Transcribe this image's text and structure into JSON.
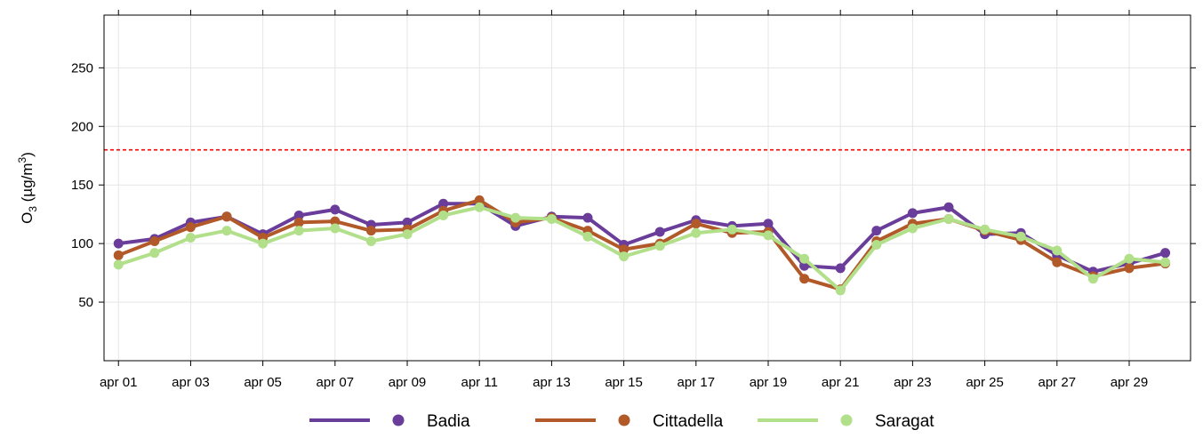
{
  "chart_data": {
    "type": "line",
    "title": "",
    "xlabel": "",
    "ylabel": {
      "base": "O",
      "sub": "3",
      "unit_prefix": " (µg/m",
      "sup": "3",
      "unit_suffix": ")"
    },
    "ylim": [
      0,
      295
    ],
    "yticks": [
      50,
      100,
      150,
      200,
      250
    ],
    "xlim": [
      0.6,
      30.7
    ],
    "xticks": [
      1,
      3,
      5,
      7,
      9,
      11,
      13,
      15,
      17,
      19,
      21,
      23,
      25,
      27,
      29
    ],
    "xtick_labels": [
      "apr 01",
      "apr 03",
      "apr 05",
      "apr 07",
      "apr 09",
      "apr 11",
      "apr 13",
      "apr 15",
      "apr 17",
      "apr 19",
      "apr 21",
      "apr 23",
      "apr 25",
      "apr 27",
      "apr 29"
    ],
    "x": [
      1,
      2,
      3,
      4,
      5,
      6,
      7,
      8,
      9,
      10,
      11,
      12,
      13,
      14,
      15,
      16,
      17,
      18,
      19,
      20,
      21,
      22,
      23,
      24,
      25,
      26,
      27,
      28,
      29,
      30
    ],
    "grid": true,
    "legend_position": "bottom",
    "threshold": {
      "value": 180,
      "color": "#ff0000",
      "style": "dashed"
    },
    "series": [
      {
        "name": "Badia",
        "color": "#6a3d9a",
        "values": [
          100,
          104,
          118,
          123,
          108,
          124,
          129,
          116,
          118,
          134,
          134,
          115,
          123,
          122,
          99,
          110,
          120,
          115,
          117,
          81,
          79,
          111,
          126,
          131,
          108,
          109,
          90,
          76,
          83,
          92
        ]
      },
      {
        "name": "Cittadella",
        "color": "#b15928",
        "values": [
          90,
          102,
          114,
          123,
          105,
          118,
          119,
          111,
          112,
          128,
          137,
          118,
          122,
          111,
          95,
          100,
          117,
          109,
          110,
          70,
          61,
          102,
          117,
          121,
          111,
          103,
          84,
          72,
          79,
          83
        ]
      },
      {
        "name": "Saragat",
        "color": "#b2df8a",
        "values": [
          82,
          92,
          105,
          111,
          100,
          111,
          113,
          102,
          108,
          124,
          131,
          122,
          121,
          106,
          89,
          98,
          109,
          112,
          107,
          87,
          60,
          99,
          113,
          121,
          112,
          106,
          94,
          70,
          87,
          84
        ]
      }
    ]
  }
}
